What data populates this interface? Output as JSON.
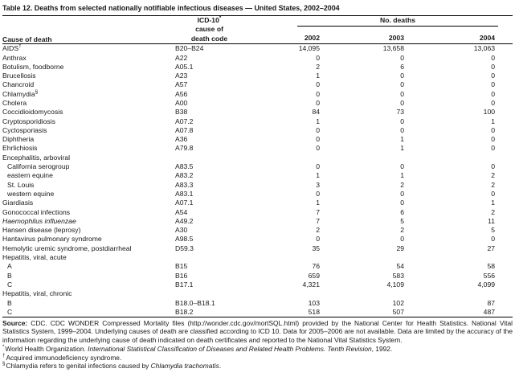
{
  "title": "Table 12. Deaths from selected nationally notifiable infectious diseases — United States, 2002–2004",
  "table": {
    "col_headers": {
      "cause": "Cause of death",
      "code_line1": "ICD-10",
      "code_line1_sup": "*",
      "code_line2": "cause of",
      "code_line3": "death code",
      "group": "No. deaths",
      "years": [
        "2002",
        "2003",
        "2004"
      ]
    },
    "rows": [
      {
        "label": "AIDS",
        "sup": "†",
        "code": "B20–B24",
        "values": [
          "14,095",
          "13,658",
          "13,063"
        ]
      },
      {
        "label": "Anthrax",
        "code": "A22",
        "values": [
          "0",
          "0",
          "0"
        ]
      },
      {
        "label": "Botulism, foodborne",
        "code": "A05.1",
        "values": [
          "2",
          "6",
          "0"
        ]
      },
      {
        "label": "Brucellosis",
        "code": "A23",
        "values": [
          "1",
          "0",
          "0"
        ]
      },
      {
        "label": "Chancroid",
        "code": "A57",
        "values": [
          "0",
          "0",
          "0"
        ]
      },
      {
        "label": "Chlamydia",
        "sup": "§",
        "code": "A56",
        "values": [
          "0",
          "0",
          "0"
        ]
      },
      {
        "label": "Cholera",
        "code": "A00",
        "values": [
          "0",
          "0",
          "0"
        ]
      },
      {
        "label": "Coccidioidomycosis",
        "code": "B38",
        "values": [
          "84",
          "73",
          "100"
        ]
      },
      {
        "label": "Cryptosporidiosis",
        "code": "A07.2",
        "values": [
          "1",
          "0",
          "1"
        ]
      },
      {
        "label": "Cyclosporiasis",
        "code": "A07.8",
        "values": [
          "0",
          "0",
          "0"
        ]
      },
      {
        "label": "Diphtheria",
        "code": "A36",
        "values": [
          "0",
          "1",
          "0"
        ]
      },
      {
        "label": "Ehrlichiosis",
        "code": "A79.8",
        "values": [
          "0",
          "1",
          "0"
        ]
      },
      {
        "label": "Encephalitis, arboviral",
        "section": true
      },
      {
        "label": "California serogroup",
        "indent": true,
        "code": "A83.5",
        "values": [
          "0",
          "0",
          "0"
        ]
      },
      {
        "label": "eastern equine",
        "indent": true,
        "code": "A83.2",
        "values": [
          "1",
          "1",
          "2"
        ]
      },
      {
        "label": "St. Louis",
        "indent": true,
        "code": "A83.3",
        "values": [
          "3",
          "2",
          "2"
        ]
      },
      {
        "label": "western equine",
        "indent": true,
        "code": "A83.1",
        "values": [
          "0",
          "0",
          "0"
        ]
      },
      {
        "label": "Giardiasis",
        "code": "A07.1",
        "values": [
          "1",
          "0",
          "1"
        ]
      },
      {
        "label": "Gonococcal infections",
        "code": "A54",
        "values": [
          "7",
          "6",
          "2"
        ]
      },
      {
        "label": "Haemophilus influenzae",
        "italic": true,
        "code": "A49.2",
        "values": [
          "7",
          "5",
          "11"
        ]
      },
      {
        "label": "Hansen disease (leprosy)",
        "code": "A30",
        "values": [
          "2",
          "2",
          "5"
        ]
      },
      {
        "label": "Hantavirus pulmonary syndrome",
        "code": "A98.5",
        "values": [
          "0",
          "0",
          "0"
        ]
      },
      {
        "label": "Hemolytic uremic syndrome, postdiarrheal",
        "code": "D59.3",
        "values": [
          "35",
          "29",
          "27"
        ]
      },
      {
        "label": "Hepatitis, viral, acute",
        "section": true
      },
      {
        "label": "A",
        "indent": true,
        "code": "B15",
        "values": [
          "76",
          "54",
          "58"
        ]
      },
      {
        "label": "B",
        "indent": true,
        "code": "B16",
        "values": [
          "659",
          "583",
          "556"
        ]
      },
      {
        "label": "C",
        "indent": true,
        "code": "B17.1",
        "values": [
          "4,321",
          "4,109",
          "4,099"
        ]
      },
      {
        "label": "Hepatitis, viral, chronic",
        "section": true
      },
      {
        "label": "B",
        "indent": true,
        "code": "B18.0–B18.1",
        "values": [
          "103",
          "102",
          "87"
        ]
      },
      {
        "label": "C",
        "indent": true,
        "code": "B18.2",
        "values": [
          "518",
          "507",
          "487"
        ]
      }
    ]
  },
  "source": {
    "label": "Source:",
    "text": "CDC. CDC WONDER Compressed Mortality files (http://wonder.cdc.gov/mortSQL.html) provided by the National Center for Health Statistics. National Vital Statistics System, 1999–2004. Underlying causes of death are classified according to ICD 10. Data for 2005–2006 are not available. Data are limited by the accuracy of the information regarding the underlying cause of death indicated on death certificates and reported to the National Vital Statistics System."
  },
  "footnotes": [
    {
      "marker": "*",
      "segments": [
        {
          "text": "World Health Organization. "
        },
        {
          "text": "International Statistical Classification of Diseases and Related Health Problems. Tenth Revision",
          "italic": true
        },
        {
          "text": ", 1992."
        }
      ]
    },
    {
      "marker": "†",
      "segments": [
        {
          "text": "Acquired immunodeficiency syndrome."
        }
      ]
    },
    {
      "marker": "§",
      "segments": [
        {
          "text": "Chlamydia refers to genital infections caused by "
        },
        {
          "text": "Chlamydia trachomatis",
          "italic": true
        },
        {
          "text": "."
        }
      ]
    }
  ],
  "colors": {
    "text": "#181818",
    "rule": "#000000",
    "background": "#ffffff"
  }
}
